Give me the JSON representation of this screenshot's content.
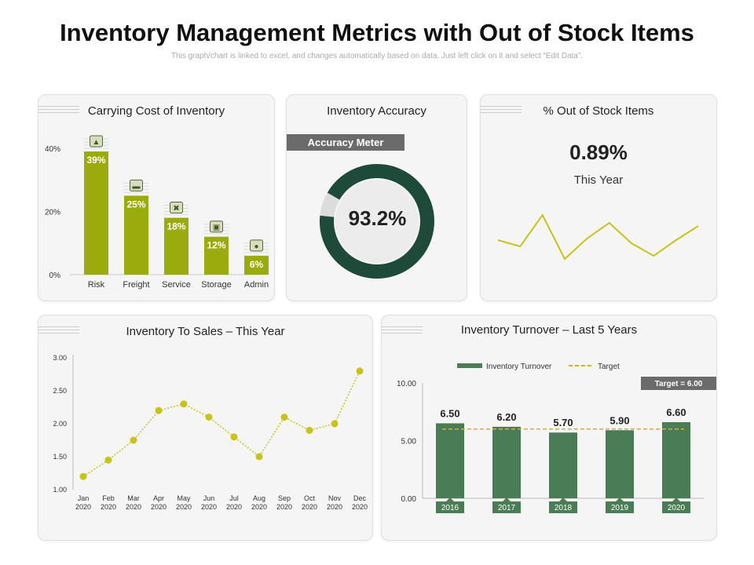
{
  "page": {
    "title": "Inventory Management Metrics with Out of Stock Items",
    "subtitle": "This graph/chart is linked to excel, and changes automatically based on data. Just left click on it and select “Edit Data”."
  },
  "colors": {
    "olive": "#9aab0c",
    "dark_green": "#1e4a3a",
    "mid_green": "#4a7d55",
    "yellow": "#c8c31c",
    "target": "#d9b21c",
    "grey": "#6b6b6b"
  },
  "carrying_cost": {
    "title": "Carrying Cost of Inventory"
  },
  "accuracy": {
    "title": "Inventory Accuracy",
    "meter_label": "Accuracy Meter",
    "value_label": "93.2%"
  },
  "out_of_stock": {
    "title": "% Out of Stock Items",
    "value_label": "0.89%",
    "period": "This Year"
  },
  "sales": {
    "title": "Inventory To Sales – This Year"
  },
  "turnover": {
    "title": "Inventory Turnover – Last 5 Years",
    "target_badge": "Target = 6.00"
  },
  "chart_data": [
    {
      "id": "carrying_cost",
      "type": "bar",
      "categories": [
        "Risk",
        "Freight",
        "Service",
        "Storage",
        "Admin"
      ],
      "values": [
        39,
        25,
        18,
        12,
        6
      ],
      "value_labels": [
        "39%",
        "25%",
        "18%",
        "12%",
        "6%"
      ],
      "icons": [
        "chart-icon",
        "truck-icon",
        "tools-icon",
        "clipboard-icon",
        "people-icon"
      ],
      "yticks": [
        "0%",
        "20%",
        "40%"
      ],
      "ylim": [
        0,
        40
      ]
    },
    {
      "id": "accuracy",
      "type": "pie",
      "values": [
        93.2,
        6.8
      ]
    },
    {
      "id": "out_of_stock",
      "type": "line",
      "values": [
        1.5,
        1.1,
        3.1,
        0.3,
        1.6,
        2.6,
        1.3,
        0.5,
        1.5,
        2.4
      ],
      "ylim": [
        0,
        4
      ]
    },
    {
      "id": "sales",
      "type": "line",
      "categories": [
        "Jan 2020",
        "Feb 2020",
        "Mar 2020",
        "Apr 2020",
        "May 2020",
        "Jun 2020",
        "Jul 2020",
        "Aug 2020",
        "Sep 2020",
        "Oct 2020",
        "Nov 2020",
        "Dec 2020"
      ],
      "values": [
        1.2,
        1.45,
        1.75,
        2.2,
        2.3,
        2.1,
        1.8,
        1.5,
        2.1,
        1.9,
        2.0,
        2.8
      ],
      "yticks": [
        "1.00",
        "1.50",
        "2.00",
        "2.50",
        "3.00"
      ],
      "ylim": [
        1,
        3
      ]
    },
    {
      "id": "turnover",
      "type": "bar",
      "categories": [
        "2016",
        "2017",
        "2018",
        "2019",
        "2020"
      ],
      "series": [
        {
          "name": "Inventory Turnover",
          "values": [
            6.5,
            6.2,
            5.7,
            5.9,
            6.6
          ]
        },
        {
          "name": "Target",
          "values": [
            6.0,
            6.0,
            6.0,
            6.0,
            6.0
          ]
        }
      ],
      "value_labels": [
        "6.50",
        "6.20",
        "5.70",
        "5.90",
        "6.60"
      ],
      "yticks": [
        "0.00",
        "5.00",
        "10.00"
      ],
      "ylim": [
        0,
        10
      ],
      "legend": "top"
    }
  ]
}
